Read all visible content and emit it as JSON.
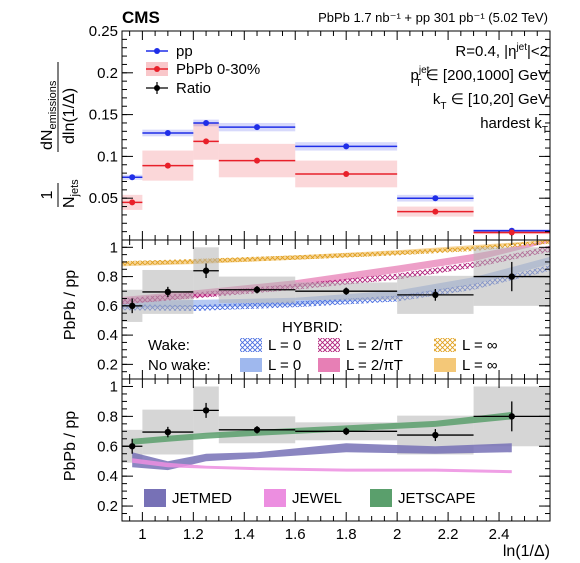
{
  "header": {
    "experiment": "CMS",
    "dataset": "PbPb 1.7 nb⁻¹ + pp 301 pb⁻¹ (5.02 TeV)"
  },
  "colors": {
    "pp": "#1f2ee8",
    "pbpb": "#e8202a",
    "ratio": "#000000",
    "hybrid_wake_l0": "#4a6ee0",
    "hybrid_wake_l2": "#b0207a",
    "hybrid_wake_linf": "#e0a020",
    "hybrid_nowake_l0": "#9fb8ee",
    "hybrid_nowake_l2": "#e77fb5",
    "hybrid_nowake_linf": "#f4c878",
    "jetmed": "#7771b6",
    "jewel": "#ec8ee0",
    "jetscape": "#5a9f6c"
  },
  "chart_data": [
    {
      "type": "scatter",
      "ylabel": "1/N_jets dN_emissions/dln(1/Δ)",
      "ylabel_parts": {
        "pre": "1",
        "num_main": "dN",
        "num_sub": "emissions",
        "den_main": "dln(1/Δ)",
        "norm_main": "N",
        "norm_sub": "jets"
      },
      "ylim": [
        0,
        0.25
      ],
      "yticks": [
        "0.05",
        "0.1",
        "0.15",
        "0.2",
        "0.25"
      ],
      "legend_position": "top-left",
      "annotations": [
        "R=0.4, |η^jet|<2",
        "p_T^jet ∈ [200,1000] GeV",
        "k_T ∈ [10,20] GeV",
        "hardest k_T"
      ],
      "annotation_parts": [
        {
          "a": "R=0.4, |η",
          "sup": "jet",
          "b": "|<2"
        },
        {
          "a": "p",
          "sup": "jet",
          "sub": "T",
          "b": " ∈ [200,1000] GeV"
        },
        {
          "a": "k",
          "sub": "T",
          "b": " ∈ [10,20] GeV"
        },
        {
          "a": "hardest k",
          "sub": "T",
          "b": ""
        }
      ],
      "bins": [
        [
          0.92,
          1.0
        ],
        [
          1.0,
          1.2
        ],
        [
          1.2,
          1.3
        ],
        [
          1.3,
          1.6
        ],
        [
          1.6,
          2.0
        ],
        [
          2.0,
          2.3
        ],
        [
          2.3,
          2.6
        ]
      ],
      "series": [
        {
          "name": "pp",
          "x": [
            0.96,
            1.1,
            1.25,
            1.45,
            1.8,
            2.15,
            2.45
          ],
          "y": [
            0.075,
            0.128,
            0.14,
            0.135,
            0.112,
            0.05,
            0.011
          ],
          "syst": [
            0.003,
            0.004,
            0.004,
            0.005,
            0.005,
            0.004,
            0.002
          ]
        },
        {
          "name": "PbPb 0-30%",
          "x": [
            0.96,
            1.1,
            1.25,
            1.45,
            1.8,
            2.15,
            2.45
          ],
          "y": [
            0.045,
            0.089,
            0.118,
            0.095,
            0.079,
            0.034,
            0.009
          ],
          "syst": [
            0.009,
            0.018,
            0.022,
            0.02,
            0.016,
            0.006,
            0.002
          ]
        },
        {
          "name": "Ratio"
        }
      ]
    },
    {
      "type": "scatter",
      "ylabel": "PbPb / pp",
      "ylim": [
        0.1,
        1.05
      ],
      "yticks": [
        "0.2",
        "0.4",
        "0.6",
        "0.8",
        "1"
      ],
      "legend_title": "HYBRID:",
      "legend_rows": [
        "Wake:",
        "No wake:"
      ],
      "x": [
        0.96,
        1.1,
        1.25,
        1.45,
        1.8,
        2.15,
        2.45
      ],
      "bins": [
        [
          0.92,
          1.0
        ],
        [
          1.0,
          1.2
        ],
        [
          1.2,
          1.3
        ],
        [
          1.3,
          1.6
        ],
        [
          1.6,
          2.0
        ],
        [
          2.0,
          2.3
        ],
        [
          2.3,
          2.6
        ]
      ],
      "ratio": [
        0.6,
        0.695,
        0.84,
        0.71,
        0.7,
        0.675,
        0.8
      ],
      "stat_err": [
        0.05,
        0.035,
        0.05,
        0.025,
        0.025,
        0.04,
        0.1
      ],
      "syst": [
        0.11,
        0.15,
        0.16,
        0.09,
        0.06,
        0.13,
        0.2
      ],
      "models_x": [
        0.92,
        1.2,
        1.6,
        2.0,
        2.3,
        2.6
      ],
      "models": [
        {
          "name": "L = 0",
          "group": "Wake",
          "style": "hatch",
          "y": [
            0.59,
            0.585,
            0.61,
            0.65,
            0.73,
            0.86
          ],
          "band": 0.02
        },
        {
          "name": "L = 2/πT",
          "group": "Wake",
          "style": "hatch",
          "y": [
            0.63,
            0.67,
            0.73,
            0.8,
            0.88,
            0.99
          ],
          "band": 0.02
        },
        {
          "name": "L = ∞",
          "group": "Wake",
          "style": "hatch",
          "y": [
            0.89,
            0.905,
            0.93,
            0.96,
            0.99,
            1.04
          ],
          "band": 0.015
        },
        {
          "name": "L = 0",
          "group": "No wake",
          "style": "solid",
          "y": [
            0.61,
            0.615,
            0.63,
            0.68,
            0.77,
            0.91
          ],
          "band": 0.025
        },
        {
          "name": "L = 2/πT",
          "group": "No wake",
          "style": "solid",
          "y": [
            0.635,
            0.68,
            0.75,
            0.85,
            0.93,
            1.06
          ],
          "band": 0.025
        },
        {
          "name": "L = ∞",
          "group": "No wake",
          "style": "solid",
          "y": [
            0.885,
            0.9,
            0.93,
            0.965,
            1.0,
            1.06
          ],
          "band": 0.015
        }
      ]
    },
    {
      "type": "scatter",
      "ylabel": "PbPb / pp",
      "xlabel": "ln(1/Δ)",
      "ylim": [
        0.1,
        1.05
      ],
      "xlim": [
        0.92,
        2.6
      ],
      "yticks": [
        "0.2",
        "0.4",
        "0.6",
        "0.8",
        "1"
      ],
      "xticks": [
        1.0,
        1.2,
        1.4,
        1.6,
        1.8,
        2.0,
        2.2,
        2.4
      ],
      "xtick_labels": [
        "1",
        "1.2",
        "1.4",
        "1.6",
        "1.8",
        "2",
        "2.2",
        "2.4"
      ],
      "x": [
        0.96,
        1.1,
        1.25,
        1.45,
        1.8,
        2.15,
        2.45
      ],
      "bins": [
        [
          0.92,
          1.0
        ],
        [
          1.0,
          1.2
        ],
        [
          1.2,
          1.3
        ],
        [
          1.3,
          1.6
        ],
        [
          1.6,
          2.0
        ],
        [
          2.0,
          2.3
        ],
        [
          2.3,
          2.6
        ]
      ],
      "ratio": [
        0.6,
        0.695,
        0.84,
        0.71,
        0.7,
        0.675,
        0.8
      ],
      "stat_err": [
        0.05,
        0.035,
        0.05,
        0.025,
        0.025,
        0.04,
        0.1
      ],
      "syst": [
        0.11,
        0.15,
        0.16,
        0.09,
        0.06,
        0.13,
        0.2
      ],
      "models": [
        {
          "name": "JETMED",
          "x": [
            0.96,
            1.1,
            1.25,
            1.45,
            1.8,
            2.15,
            2.45
          ],
          "lo": [
            0.46,
            0.44,
            0.5,
            0.52,
            0.56,
            0.55,
            0.56
          ],
          "hi": [
            0.56,
            0.5,
            0.55,
            0.56,
            0.62,
            0.6,
            0.62
          ]
        },
        {
          "name": "JEWEL",
          "x": [
            0.96,
            1.1,
            1.25,
            1.45,
            1.8,
            2.15,
            2.45
          ],
          "lo": [
            0.49,
            0.46,
            0.45,
            0.44,
            0.43,
            0.43,
            0.42
          ],
          "hi": [
            0.52,
            0.49,
            0.47,
            0.46,
            0.45,
            0.45,
            0.44
          ]
        },
        {
          "name": "JETSCAPE",
          "x": [
            0.96,
            1.1,
            1.25,
            1.45,
            1.8,
            2.15,
            2.45
          ],
          "lo": [
            0.61,
            0.63,
            0.65,
            0.67,
            0.7,
            0.73,
            0.78
          ],
          "hi": [
            0.65,
            0.67,
            0.69,
            0.71,
            0.74,
            0.77,
            0.83
          ]
        }
      ]
    }
  ]
}
